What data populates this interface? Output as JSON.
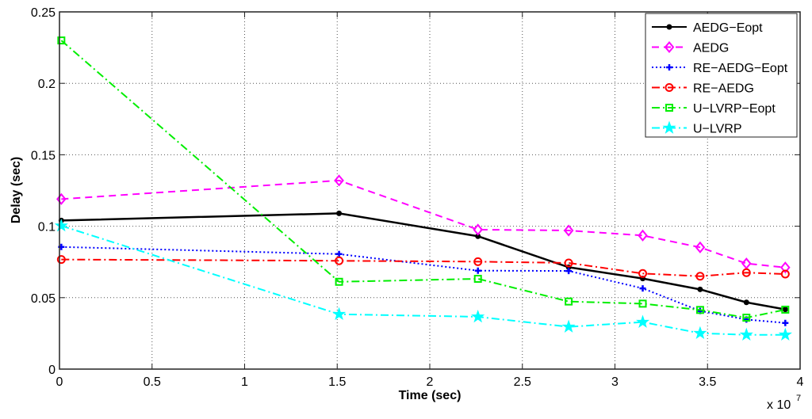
{
  "chart_data": {
    "type": "line",
    "title": "",
    "xlabel": "Time (sec)",
    "ylabel": "Delay (sec)",
    "x_multiplier_label": "x 10",
    "x_multiplier_exponent": "7",
    "xlim": [
      0,
      4
    ],
    "ylim": [
      0,
      0.25
    ],
    "xticks": [
      "0",
      "0.5",
      "1",
      "1.5",
      "2",
      "2.5",
      "3",
      "3.5",
      "4"
    ],
    "yticks": [
      "0",
      "0.05",
      "0.1",
      "0.15",
      "0.2",
      "0.25"
    ],
    "grid": true,
    "legend_position": "top-right",
    "x": [
      0.01,
      1.51,
      2.26,
      2.75,
      3.15,
      3.46,
      3.71,
      3.92
    ],
    "series": [
      {
        "name": "AEDG−Eopt",
        "color": "#000000",
        "dash": "solid",
        "marker": "dot",
        "values": [
          0.104,
          0.109,
          0.093,
          0.0713,
          0.0634,
          0.0558,
          0.0467,
          0.0418
        ]
      },
      {
        "name": "AEDG",
        "color": "#ff00ff",
        "dash": "dashed",
        "marker": "diamond",
        "values": [
          0.119,
          0.132,
          0.0976,
          0.097,
          0.0935,
          0.0852,
          0.0739,
          0.0711
        ]
      },
      {
        "name": "RE−AEDG−Eopt",
        "color": "#0000ff",
        "dash": "dotted",
        "marker": "plus",
        "values": [
          0.0855,
          0.0805,
          0.0689,
          0.0687,
          0.0565,
          0.0407,
          0.0347,
          0.0323
        ]
      },
      {
        "name": "RE−AEDG",
        "color": "#ff0000",
        "dash": "dashdot",
        "marker": "circle",
        "values": [
          0.0767,
          0.0758,
          0.0752,
          0.0743,
          0.0669,
          0.065,
          0.0675,
          0.0665
        ]
      },
      {
        "name": "U−LVRP−Eopt",
        "color": "#00ee00",
        "dash": "dashdot",
        "marker": "square",
        "values": [
          0.23,
          0.0611,
          0.0632,
          0.0473,
          0.0458,
          0.0414,
          0.036,
          0.0416
        ]
      },
      {
        "name": "U−LVRP",
        "color": "#00ffff",
        "dash": "dashdot",
        "marker": "star",
        "values": [
          0.1003,
          0.0384,
          0.0366,
          0.0296,
          0.0329,
          0.0251,
          0.024,
          0.024
        ]
      }
    ]
  }
}
